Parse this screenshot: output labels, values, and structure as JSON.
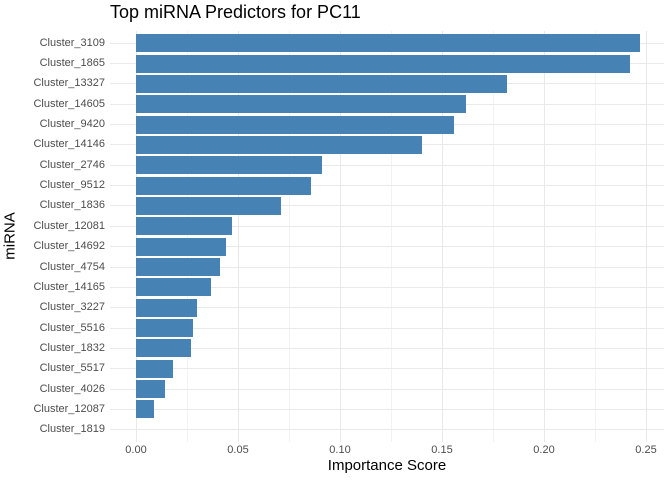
{
  "chart_data": {
    "type": "bar",
    "orientation": "horizontal",
    "title": "Top miRNA Predictors for PC11",
    "xlabel": "Importance Score",
    "ylabel": "miRNA",
    "categories": [
      "Cluster_3109",
      "Cluster_1865",
      "Cluster_13327",
      "Cluster_14605",
      "Cluster_9420",
      "Cluster_14146",
      "Cluster_2746",
      "Cluster_9512",
      "Cluster_1836",
      "Cluster_12081",
      "Cluster_14692",
      "Cluster_4754",
      "Cluster_14165",
      "Cluster_3227",
      "Cluster_5516",
      "Cluster_1832",
      "Cluster_5517",
      "Cluster_4026",
      "Cluster_12087",
      "Cluster_1819"
    ],
    "values": [
      0.247,
      0.242,
      0.182,
      0.162,
      0.156,
      0.14,
      0.091,
      0.086,
      0.071,
      0.047,
      0.044,
      0.041,
      0.037,
      0.03,
      0.028,
      0.027,
      0.018,
      0.014,
      0.009,
      0.0
    ],
    "x_ticks": [
      0,
      0.05,
      0.1,
      0.15,
      0.2,
      0.25
    ],
    "x_tick_labels": [
      "0.00",
      "0.05",
      "0.10",
      "0.15",
      "0.20",
      "0.25"
    ],
    "x_minor_ticks": [
      0.025,
      0.075,
      0.125,
      0.175,
      0.225
    ],
    "xlim": [
      -0.013,
      0.259
    ],
    "grid": true,
    "legend": false,
    "bar_color": "#4682B4",
    "grid_color_major": "#E9E9E9",
    "grid_color_minor": "#F2F2F2",
    "tick_label_color": "#4D4D4D",
    "text_color": "#000000",
    "background_color": "#FFFFFF"
  }
}
